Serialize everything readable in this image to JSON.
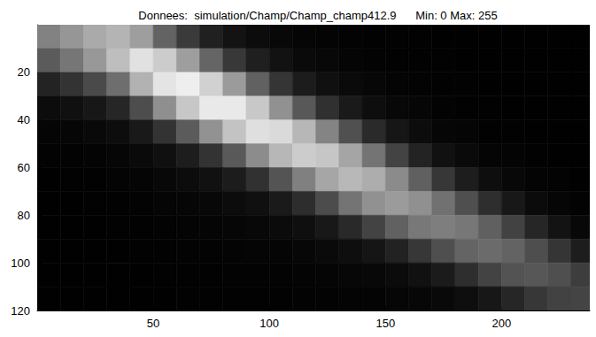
{
  "chart_data": {
    "type": "heatmap",
    "title": "Donnees:  simulation/Champ/Champ_champ412.9      Min: 0 Max: 255",
    "x_bins": [
      0,
      10,
      20,
      30,
      40,
      50,
      60,
      70,
      80,
      90,
      100,
      110,
      120,
      130,
      140,
      150,
      160,
      170,
      180,
      190,
      200,
      210,
      220,
      230,
      240
    ],
    "y_bins": [
      0,
      10,
      20,
      30,
      40,
      50,
      60,
      70,
      80,
      90,
      100,
      110,
      120
    ],
    "cells": [
      [
        130,
        150,
        170,
        180,
        158,
        99,
        58,
        32,
        19,
        12,
        8,
        5,
        4,
        3,
        2,
        2,
        2,
        1,
        1,
        1,
        1,
        1,
        1,
        1
      ],
      [
        91,
        118,
        152,
        190,
        225,
        204,
        158,
        101,
        56,
        31,
        18,
        10,
        8,
        5,
        3,
        2,
        2,
        2,
        1,
        1,
        1,
        1,
        1,
        1
      ],
      [
        35,
        51,
        74,
        110,
        178,
        228,
        238,
        209,
        155,
        97,
        53,
        28,
        16,
        10,
        7,
        4,
        3,
        2,
        2,
        1,
        1,
        1,
        1,
        1
      ],
      [
        12,
        16,
        23,
        38,
        77,
        143,
        199,
        233,
        233,
        200,
        145,
        88,
        48,
        26,
        14,
        8,
        6,
        3,
        2,
        2,
        1,
        1,
        1,
        1
      ],
      [
        5,
        6,
        9,
        13,
        25,
        51,
        91,
        146,
        195,
        223,
        218,
        183,
        132,
        80,
        42,
        22,
        12,
        6,
        5,
        2,
        2,
        1,
        1,
        1
      ],
      [
        3,
        3,
        4,
        6,
        10,
        16,
        29,
        51,
        89,
        140,
        183,
        204,
        198,
        165,
        116,
        67,
        35,
        17,
        10,
        5,
        4,
        2,
        1,
        1
      ],
      [
        1,
        2,
        2,
        4,
        5,
        8,
        12,
        17,
        28,
        49,
        84,
        128,
        166,
        184,
        173,
        139,
        96,
        55,
        29,
        14,
        8,
        4,
        3,
        1
      ],
      [
        1,
        1,
        2,
        2,
        3,
        5,
        6,
        8,
        12,
        16,
        26,
        45,
        76,
        116,
        145,
        155,
        144,
        113,
        79,
        46,
        24,
        11,
        6,
        3
      ],
      [
        1,
        1,
        1,
        2,
        2,
        3,
        4,
        5,
        6,
        8,
        11,
        15,
        24,
        41,
        67,
        97,
        120,
        126,
        119,
        96,
        66,
        38,
        19,
        8
      ],
      [
        1,
        1,
        1,
        1,
        2,
        2,
        3,
        3,
        4,
        5,
        5,
        7,
        10,
        14,
        21,
        34,
        55,
        79,
        100,
        107,
        99,
        78,
        53,
        29
      ],
      [
        1,
        1,
        1,
        1,
        1,
        2,
        2,
        2,
        3,
        3,
        3,
        4,
        5,
        7,
        8,
        11,
        17,
        27,
        46,
        67,
        83,
        87,
        79,
        61
      ],
      [
        1,
        1,
        1,
        1,
        1,
        1,
        2,
        2,
        2,
        2,
        2,
        3,
        3,
        4,
        4,
        6,
        7,
        9,
        14,
        23,
        38,
        55,
        66,
        68
      ]
    ],
    "clim": [
      0,
      255
    ],
    "xlim": [
      0,
      238
    ],
    "ylim": [
      120,
      0
    ],
    "xticks": [
      50,
      100,
      150,
      200
    ],
    "yticks": [
      20,
      40,
      60,
      80,
      100,
      120
    ]
  }
}
